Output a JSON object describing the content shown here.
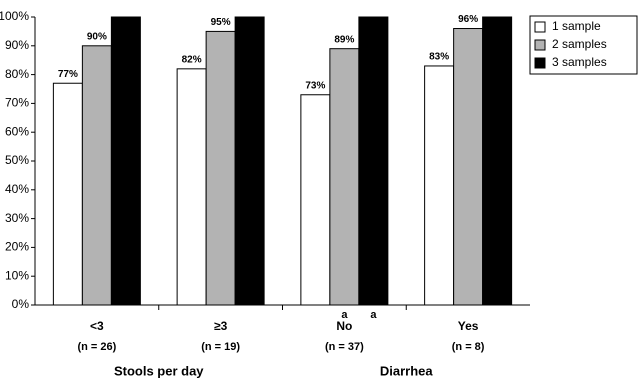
{
  "chart_data": {
    "type": "bar",
    "categories": [
      "<3",
      "≥3",
      "No",
      "Yes"
    ],
    "category_sublabels": [
      "(n = 26)",
      "(n = 19)",
      "(n = 37)",
      "(n = 8)"
    ],
    "groups": [
      "Stools per day",
      "Diarrhea"
    ],
    "series": [
      {
        "name": "1 sample",
        "color": "#ffffff",
        "values": [
          77,
          82,
          73,
          83
        ],
        "value_labels": [
          "77%",
          "82%",
          "73%",
          "83%"
        ]
      },
      {
        "name": "2 samples",
        "color": "#b3b3b3",
        "values": [
          90,
          95,
          89,
          96
        ],
        "value_labels": [
          "90%",
          "95%",
          "89%",
          "96%"
        ],
        "annotations": [
          null,
          null,
          "a",
          null
        ]
      },
      {
        "name": "3 samples",
        "color": "#000000",
        "values": [
          100,
          100,
          100,
          100
        ],
        "annotations": [
          null,
          null,
          "a",
          null
        ]
      }
    ],
    "ylim": [
      0,
      100
    ],
    "yticks": [
      {
        "value": 0,
        "label": "0%"
      },
      {
        "value": 10,
        "label": "10%"
      },
      {
        "value": 20,
        "label": "20%"
      },
      {
        "value": 30,
        "label": "30%"
      },
      {
        "value": 40,
        "label": "40%"
      },
      {
        "value": 50,
        "label": "50%"
      },
      {
        "value": 60,
        "label": "60%"
      },
      {
        "value": 70,
        "label": "70%"
      },
      {
        "value": 80,
        "label": "80%"
      },
      {
        "value": 90,
        "label": "90%"
      },
      {
        "value": 100,
        "label": "100%"
      }
    ],
    "grid": false,
    "legend": "top-right"
  }
}
